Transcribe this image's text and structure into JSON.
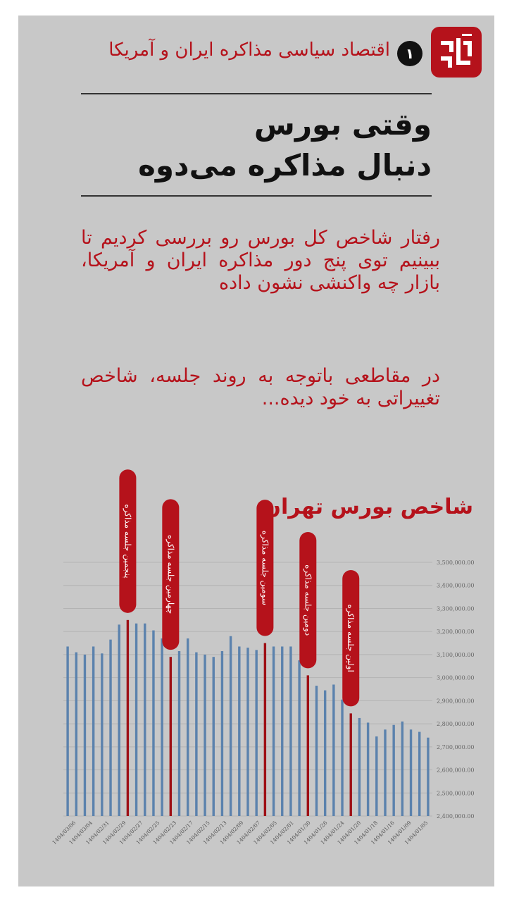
{
  "header": {
    "logo_icon": "brand-logo-icon",
    "badge_number": "۱",
    "kicker": "اقتصاد سیاسی مذاکره ایران و آمریکا"
  },
  "headline": {
    "line1": "وقتی بورس",
    "line2": "دنبال مذاکره می‌دوه"
  },
  "intro": {
    "p1": "رفتار شاخص کل بورس رو بررسی کردیم تا ببینیم توی پنج دور مذاکره ایران و آمریکا، بازار چه واکنشی نشون داده",
    "p2": "در مقاطعی باتوجه به روند جلسه، شاخص تغییراتی به خود دیده..."
  },
  "colors": {
    "accent": "#b5121b",
    "bar": "#5b82ad",
    "highlight_bar": "#9e0f15",
    "background": "#c8c8c8"
  },
  "chart_data": {
    "type": "bar",
    "title": "شاخص بورس تهران",
    "ylim": [
      2400000,
      3500000
    ],
    "y_ticks": [
      2400000,
      2500000,
      2600000,
      2700000,
      2800000,
      2900000,
      3000000,
      3100000,
      3200000,
      3300000,
      3400000,
      3500000
    ],
    "y_tick_labels": [
      "2,400,000.00",
      "2,500,000.00",
      "2,600,000.00",
      "2,700,000.00",
      "2,800,000.00",
      "2,900,000.00",
      "3,000,000.00",
      "3,100,000.00",
      "3,200,000.00",
      "3,300,000.00",
      "3,400,000.00",
      "3,500,000.00"
    ],
    "x_tick_labels": [
      "1404/03/06",
      "1404/03/04",
      "1404/02/31",
      "1404/02/29",
      "1404/02/27",
      "1404/02/25",
      "1404/02/23",
      "1404/02/17",
      "1404/02/15",
      "1404/02/13",
      "1404/02/09",
      "1404/02/07",
      "1404/02/05",
      "1404/02/01",
      "1404/01/30",
      "1404/01/26",
      "1404/01/24",
      "1404/01/20",
      "1404/01/18",
      "1404/01/16",
      "1404/01/09",
      "1404/01/05"
    ],
    "values": [
      3135000,
      3110000,
      3100000,
      3135000,
      3105000,
      3165000,
      3230000,
      3250000,
      3235000,
      3235000,
      3205000,
      3170000,
      3090000,
      3115000,
      3170000,
      3110000,
      3100000,
      3090000,
      3115000,
      3180000,
      3135000,
      3130000,
      3120000,
      3150000,
      3135000,
      3135000,
      3135000,
      3075000,
      3010000,
      2965000,
      2945000,
      2970000,
      2905000,
      2845000,
      2825000,
      2805000,
      2745000,
      2775000,
      2795000,
      2810000,
      2775000,
      2765000,
      2740000
    ],
    "annotations": [
      {
        "label": "پنجمین جلسه مذاکره",
        "bar_index": 7
      },
      {
        "label": "چهارمین جلسه مذاکره",
        "bar_index": 12
      },
      {
        "label": "سومین جلسه مذاکره",
        "bar_index": 23
      },
      {
        "label": "دومین جلسه مذاکره",
        "bar_index": 28
      },
      {
        "label": "اولین جلسه مذاکره",
        "bar_index": 33
      }
    ],
    "grid": true
  }
}
